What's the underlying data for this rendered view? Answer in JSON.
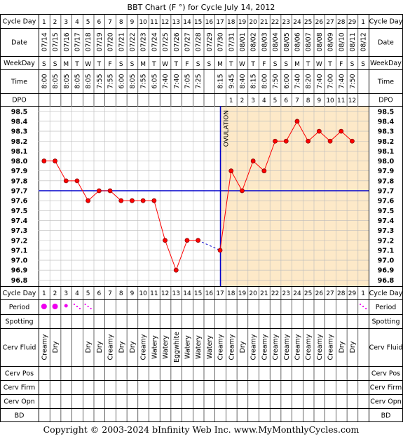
{
  "chart_data": {
    "type": "line",
    "title": "BBT Chart (F °) for Cycle July 14, 2012",
    "ylim": [
      96.8,
      98.5
    ],
    "y_ticks": [
      "98.5",
      "98.4",
      "98.3",
      "98.2",
      "98.1",
      "98.0",
      "97.9",
      "97.8",
      "97.7",
      "97.6",
      "97.5",
      "97.4",
      "97.3",
      "97.2",
      "97.1",
      "97.0",
      "96.9",
      "96.8"
    ],
    "coverline": 97.7,
    "ovulation_day": 17,
    "ovulation_label": "OVULATION",
    "cycle_days": [
      "1",
      "2",
      "3",
      "4",
      "5",
      "6",
      "7",
      "8",
      "9",
      "10",
      "11",
      "12",
      "13",
      "14",
      "15",
      "16",
      "17",
      "18",
      "19",
      "20",
      "21",
      "22",
      "23",
      "24",
      "25",
      "26",
      "27",
      "28",
      "29",
      "1"
    ],
    "dates": [
      "07/14",
      "07/15",
      "07/16",
      "07/17",
      "07/18",
      "07/19",
      "07/20",
      "07/21",
      "07/22",
      "07/23",
      "07/24",
      "07/25",
      "07/26",
      "07/27",
      "07/28",
      "07/29",
      "07/30",
      "07/31",
      "08/01",
      "08/02",
      "08/03",
      "08/04",
      "08/05",
      "08/06",
      "08/07",
      "08/08",
      "08/09",
      "08/10",
      "08/11",
      "08/12"
    ],
    "weekdays": [
      "S",
      "S",
      "M",
      "T",
      "W",
      "T",
      "F",
      "S",
      "S",
      "M",
      "T",
      "W",
      "T",
      "F",
      "S",
      "S",
      "M",
      "T",
      "W",
      "T",
      "F",
      "S",
      "S",
      "M",
      "T",
      "W",
      "T",
      "F",
      "S",
      "S"
    ],
    "times": [
      "8:00",
      "8:05",
      "8:05",
      "8:05",
      "8:05",
      "7:55",
      "7:55",
      "6:00",
      "8:05",
      "7:55",
      "6:05",
      "7:40",
      "7:40",
      "7:05",
      "7:25",
      "",
      "8:15",
      "9:45",
      "8:40",
      "8:15",
      "8:00",
      "7:50",
      "6:00",
      "7:40",
      "8:20",
      "7:40",
      "7:00",
      "7:40",
      "7:50",
      ""
    ],
    "dpo": [
      "",
      "",
      "",
      "",
      "",
      "",
      "",
      "",
      "",
      "",
      "",
      "",
      "",
      "",
      "",
      "",
      "",
      "1",
      "2",
      "3",
      "4",
      "5",
      "6",
      "7",
      "8",
      "9",
      "10",
      "11",
      "12",
      ""
    ],
    "temps": [
      98.0,
      98.0,
      97.8,
      97.8,
      97.6,
      97.7,
      97.7,
      97.6,
      97.6,
      97.6,
      97.6,
      97.2,
      96.9,
      97.2,
      97.2,
      null,
      97.1,
      97.9,
      97.7,
      98.0,
      97.9,
      98.2,
      98.2,
      98.4,
      98.2,
      98.3,
      98.2,
      98.3,
      98.2,
      null
    ],
    "period": [
      "heavy",
      "heavy",
      "medium",
      "light",
      "light",
      "",
      "",
      "",
      "",
      "",
      "",
      "",
      "",
      "",
      "",
      "",
      "",
      "",
      "",
      "",
      "",
      "",
      "",
      "",
      "",
      "",
      "",
      "",
      "",
      "light"
    ],
    "cerv_fluid": [
      "Creamy",
      "Dry",
      "",
      "",
      "Dry",
      "Dry",
      "Creamy",
      "Dry",
      "Dry",
      "Creamy",
      "Watery",
      "Watery",
      "Eggwhite",
      "Watery",
      "Watery",
      "Watery",
      "Creamy",
      "Creamy",
      "Dry",
      "Creamy",
      "Creamy",
      "Creamy",
      "Creamy",
      "Creamy",
      "Creamy",
      "Creamy",
      "Creamy",
      "Dry",
      "Dry",
      ""
    ]
  },
  "row_labels": {
    "cycle_day": "Cycle Day",
    "date": "Date",
    "weekday": "WeekDay",
    "time": "Time",
    "dpo": "DPO",
    "period": "Period",
    "spotting": "Spotting",
    "cerv_fluid": "Cerv Fluid",
    "cerv_pos": "Cerv Pos",
    "cerv_firm": "Cerv Firm",
    "cerv_opn": "Cerv Opn",
    "bd": "BD"
  },
  "footer": "Copyright © 2003-2024 bInfinity Web Inc.     www.MyMonthlyCycles.com",
  "colors": {
    "line": "#ff0000",
    "point": "#ff0000",
    "luteal_bg": "#fde9c8",
    "coverline": "#0000cc",
    "ovulation_line": "#0000cc",
    "period": "#ee00ee",
    "grid": "#bbbbbb",
    "header_bg": "#eeeeee"
  }
}
